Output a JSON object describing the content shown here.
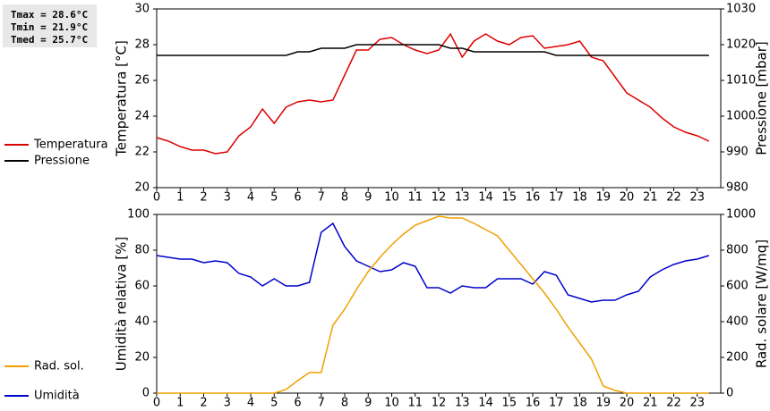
{
  "chart_data": [
    {
      "type": "line",
      "annotations": [
        "Tmax = 28.6°C",
        "Tmin = 21.9°C",
        "Tmed = 25.7°C"
      ],
      "y_label": "Temperatura [°C]",
      "y2_label": "Pressione [mbar]",
      "x": [
        0,
        0.5,
        1,
        1.5,
        2,
        2.5,
        3,
        3.5,
        4,
        4.5,
        5,
        5.5,
        6,
        6.5,
        7,
        7.5,
        8,
        8.5,
        9,
        9.5,
        10,
        10.5,
        11,
        11.5,
        12,
        12.5,
        13,
        13.5,
        14,
        14.5,
        15,
        15.5,
        16,
        16.5,
        17,
        17.5,
        18,
        18.5,
        19,
        19.5,
        20,
        20.5,
        21,
        21.5,
        22,
        22.5,
        23,
        23.5
      ],
      "xlim": [
        0,
        24
      ],
      "xticks": [
        0,
        1,
        2,
        3,
        4,
        5,
        6,
        7,
        8,
        9,
        10,
        11,
        12,
        13,
        14,
        15,
        16,
        17,
        18,
        19,
        20,
        21,
        22,
        23
      ],
      "ylim": [
        20,
        30
      ],
      "yticks": [
        20,
        22,
        24,
        26,
        28,
        30
      ],
      "y2lim": [
        980,
        1030
      ],
      "y2ticks": [
        980,
        990,
        1000,
        1010,
        1020,
        1030
      ],
      "series": [
        {
          "name": "Temperatura",
          "color": "#dd0000",
          "values": [
            22.8,
            22.6,
            22.3,
            22.1,
            22.1,
            21.9,
            22.0,
            22.9,
            23.4,
            24.4,
            23.6,
            24.5,
            24.8,
            24.9,
            24.8,
            24.9,
            26.3,
            27.7,
            27.7,
            28.3,
            28.4,
            28.0,
            27.7,
            27.5,
            27.7,
            28.6,
            27.3,
            28.2,
            28.6,
            28.2,
            28.0,
            28.4,
            28.5,
            27.8,
            27.9,
            28.0,
            28.2,
            27.3,
            27.1,
            26.2,
            25.3,
            24.9,
            24.5,
            23.9,
            23.4,
            23.1,
            22.9,
            22.6
          ]
        },
        {
          "name": "Pressione",
          "color": "#000000",
          "axis": "y2",
          "values": [
            1017,
            1017,
            1017,
            1017,
            1017,
            1017,
            1017,
            1017,
            1017,
            1017,
            1017,
            1017,
            1018,
            1018,
            1019,
            1019,
            1019,
            1020,
            1020,
            1020,
            1020,
            1020,
            1020,
            1020,
            1020,
            1019,
            1019,
            1018,
            1018,
            1018,
            1018,
            1018,
            1018,
            1018,
            1017,
            1017,
            1017,
            1017,
            1017,
            1017,
            1017,
            1017,
            1017,
            1017,
            1017,
            1017,
            1017,
            1017
          ]
        }
      ]
    },
    {
      "type": "line",
      "y_label": "Umidità relativa [%]",
      "y2_label": "Rad. solare [W/mq]",
      "x": [
        0,
        0.5,
        1,
        1.5,
        2,
        2.5,
        3,
        3.5,
        4,
        4.5,
        5,
        5.5,
        6,
        6.5,
        7,
        7.5,
        8,
        8.5,
        9,
        9.5,
        10,
        10.5,
        11,
        11.5,
        12,
        12.5,
        13,
        13.5,
        14,
        14.5,
        15,
        15.5,
        16,
        16.5,
        17,
        17.5,
        18,
        18.5,
        19,
        19.5,
        20,
        20.5,
        21,
        21.5,
        22,
        22.5,
        23,
        23.5
      ],
      "xlim": [
        0,
        24
      ],
      "xticks": [
        0,
        1,
        2,
        3,
        4,
        5,
        6,
        7,
        8,
        9,
        10,
        11,
        12,
        13,
        14,
        15,
        16,
        17,
        18,
        19,
        20,
        21,
        22,
        23
      ],
      "ylim": [
        0,
        100
      ],
      "yticks": [
        0,
        20,
        40,
        60,
        80,
        100
      ],
      "y2lim": [
        0,
        1000
      ],
      "y2ticks": [
        0,
        200,
        400,
        600,
        800,
        1000
      ],
      "series": [
        {
          "name": "Umidità",
          "color": "#0000cc",
          "values": [
            77,
            76,
            75,
            75,
            73,
            74,
            73,
            67,
            65,
            60,
            64,
            60,
            60,
            62,
            90,
            95,
            82,
            74,
            71,
            68,
            69,
            73,
            71,
            59,
            59,
            56,
            60,
            59,
            59,
            64,
            64,
            64,
            61,
            68,
            66,
            55,
            53,
            51,
            52,
            52,
            55,
            57,
            65,
            69,
            72,
            74,
            75,
            77
          ]
        },
        {
          "name": "Rad. sol.",
          "color": "#f0a000",
          "axis": "y2",
          "values": [
            0,
            0,
            0,
            0,
            0,
            0,
            0,
            0,
            0,
            0,
            0,
            20,
            70,
            115,
            115,
            380,
            470,
            580,
            680,
            760,
            830,
            890,
            940,
            965,
            990,
            980,
            980,
            950,
            915,
            880,
            800,
            720,
            640,
            560,
            470,
            370,
            280,
            190,
            40,
            15,
            0,
            0,
            0,
            0,
            0,
            0,
            0,
            0
          ]
        }
      ]
    }
  ]
}
